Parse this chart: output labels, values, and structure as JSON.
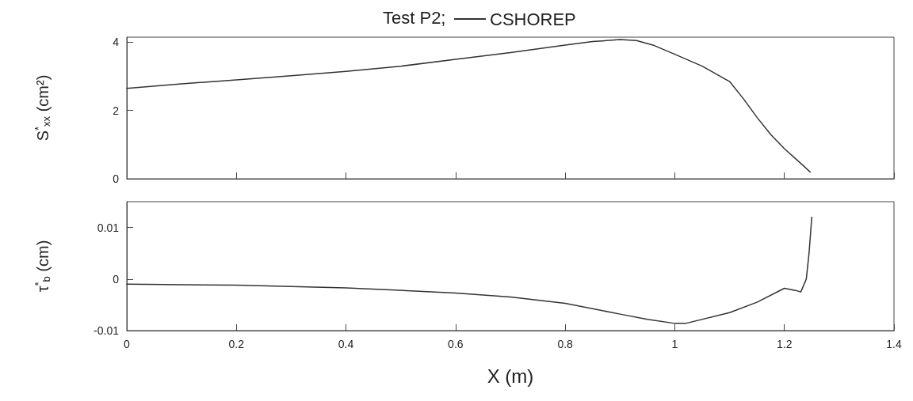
{
  "chart_data": [
    {
      "type": "line",
      "title": "Test P2;",
      "ylabel": "S$^{*}$$_{xx}$ (cm²)",
      "legend": "top",
      "tick_labels": "y",
      "grid": false,
      "marker": "none",
      "line_style": "solid",
      "xlim": [
        0,
        1.4
      ],
      "xticks": [
        0,
        0.2,
        0.4,
        0.6,
        0.8,
        1,
        1.2,
        1.4
      ],
      "ylim": [
        0,
        4.15
      ],
      "yticks": [
        0,
        2,
        4
      ],
      "series": [
        {
          "name": "CSHOREP",
          "color": "#333333",
          "x": [
            0,
            0.1,
            0.2,
            0.3,
            0.4,
            0.5,
            0.6,
            0.7,
            0.8,
            0.85,
            0.9,
            0.93,
            0.96,
            1.0,
            1.05,
            1.1,
            1.125,
            1.15,
            1.175,
            1.2,
            1.23,
            1.247
          ],
          "values": [
            2.65,
            2.78,
            2.9,
            3.02,
            3.15,
            3.3,
            3.5,
            3.7,
            3.92,
            4.02,
            4.08,
            4.05,
            3.92,
            3.65,
            3.3,
            2.85,
            2.35,
            1.8,
            1.3,
            0.88,
            0.45,
            0.2
          ]
        }
      ]
    },
    {
      "type": "line",
      "xlabel": "X (m)",
      "ylabel": "τ$^{*}$$_{b}$ (cm)",
      "grid": false,
      "marker": "none",
      "line_style": "solid",
      "xlim": [
        0,
        1.4
      ],
      "xticks": [
        0,
        0.2,
        0.4,
        0.6,
        0.8,
        1,
        1.2,
        1.4
      ],
      "ylim": [
        -0.01,
        0.015
      ],
      "yticks": [
        -0.01,
        0,
        0.01
      ],
      "series": [
        {
          "color": "#333333",
          "x": [
            0,
            0.2,
            0.4,
            0.6,
            0.7,
            0.8,
            0.9,
            0.95,
            1.0,
            1.02,
            1.1,
            1.15,
            1.2,
            1.22,
            1.23,
            1.24,
            1.245,
            1.25
          ],
          "values": [
            -0.001,
            -0.0012,
            -0.0017,
            -0.0027,
            -0.0035,
            -0.0047,
            -0.0068,
            -0.0078,
            -0.0086,
            -0.0086,
            -0.0065,
            -0.0045,
            -0.0018,
            -0.0022,
            -0.0025,
            0.0,
            0.005,
            0.012
          ]
        }
      ]
    }
  ]
}
